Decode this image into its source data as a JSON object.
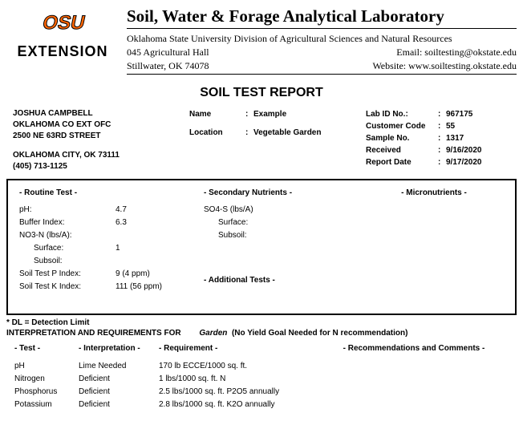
{
  "logo": {
    "extension_text": "EXTENSION"
  },
  "lab": {
    "title": "Soil, Water & Forage Analytical Laboratory",
    "division": "Oklahoma State University Division of Agricultural Sciences and Natural Resources",
    "addr1": "045 Agricultural Hall",
    "addr2": "Stillwater, OK 74078",
    "email_label": "Email: soiltesting@okstate.edu",
    "website_label": "Website: www.soiltesting.okstate.edu"
  },
  "report_title": "SOIL TEST REPORT",
  "submitter": {
    "name": "JOSHUA CAMPBELL",
    "org": "OKLAHOMA CO EXT OFC",
    "street": "2500 NE 63RD STREET",
    "city": "OKLAHOMA CITY, OK  73111",
    "phone": "(405) 713-1125"
  },
  "sample": {
    "name_label": "Name",
    "name_val": "Example",
    "loc_label": "Location",
    "loc_val": "Vegetable Garden"
  },
  "labinfo": {
    "labid_label": "Lab ID No.:",
    "labid_val": "967175",
    "cust_label": "Customer Code",
    "cust_val": "55",
    "sample_label": "Sample No.",
    "sample_val": "1317",
    "recv_label": "Received",
    "recv_val": "9/16/2020",
    "report_label": "Report Date",
    "report_val": "9/17/2020"
  },
  "sections": {
    "routine": "- Routine Test -",
    "secondary": "- Secondary Nutrients -",
    "micro": "- Micronutrients -",
    "additional": "- Additional Tests -"
  },
  "routine": {
    "ph_label": "pH:",
    "ph_val": "4.7",
    "buffer_label": "Buffer Index:",
    "buffer_val": "6.3",
    "no3_label": "NO3-N (lbs/A):",
    "surface_label": "Surface:",
    "surface_val": "1",
    "subsoil_label": "Subsoil:",
    "p_label": "Soil Test P Index:",
    "p_val": "9 (4 ppm)",
    "k_label": "Soil Test K Index:",
    "k_val": "111 (56 ppm)"
  },
  "secondary": {
    "so4_label": "SO4-S (lbs/A)",
    "surface_label": "Surface:",
    "subsoil_label": "Subsoil:"
  },
  "dl_note": "* DL = Detection Limit",
  "interp": {
    "header_prefix": "INTERPRETATION AND REQUIREMENTS FOR",
    "context": "Garden",
    "context_note": "(No Yield Goal Needed for N recommendation)",
    "col_test": "- Test -",
    "col_interp": "- Interpretation -",
    "col_req": "- Requirement -",
    "col_rec": "- Recommendations and Comments -",
    "rows": [
      {
        "test": "pH",
        "interp": "Lime Needed",
        "req": "170 lb ECCE/1000 sq. ft."
      },
      {
        "test": "Nitrogen",
        "interp": "Deficient",
        "req": "1 lbs/1000 sq. ft. N"
      },
      {
        "test": "Phosphorus",
        "interp": "Deficient",
        "req": "2.5 lbs/1000 sq. ft. P2O5 annually"
      },
      {
        "test": "Potassium",
        "interp": "Deficient",
        "req": "2.8 lbs/1000 sq. ft. K2O annually"
      }
    ]
  },
  "colors": {
    "osu_orange": "#ff6600",
    "black": "#000000"
  }
}
